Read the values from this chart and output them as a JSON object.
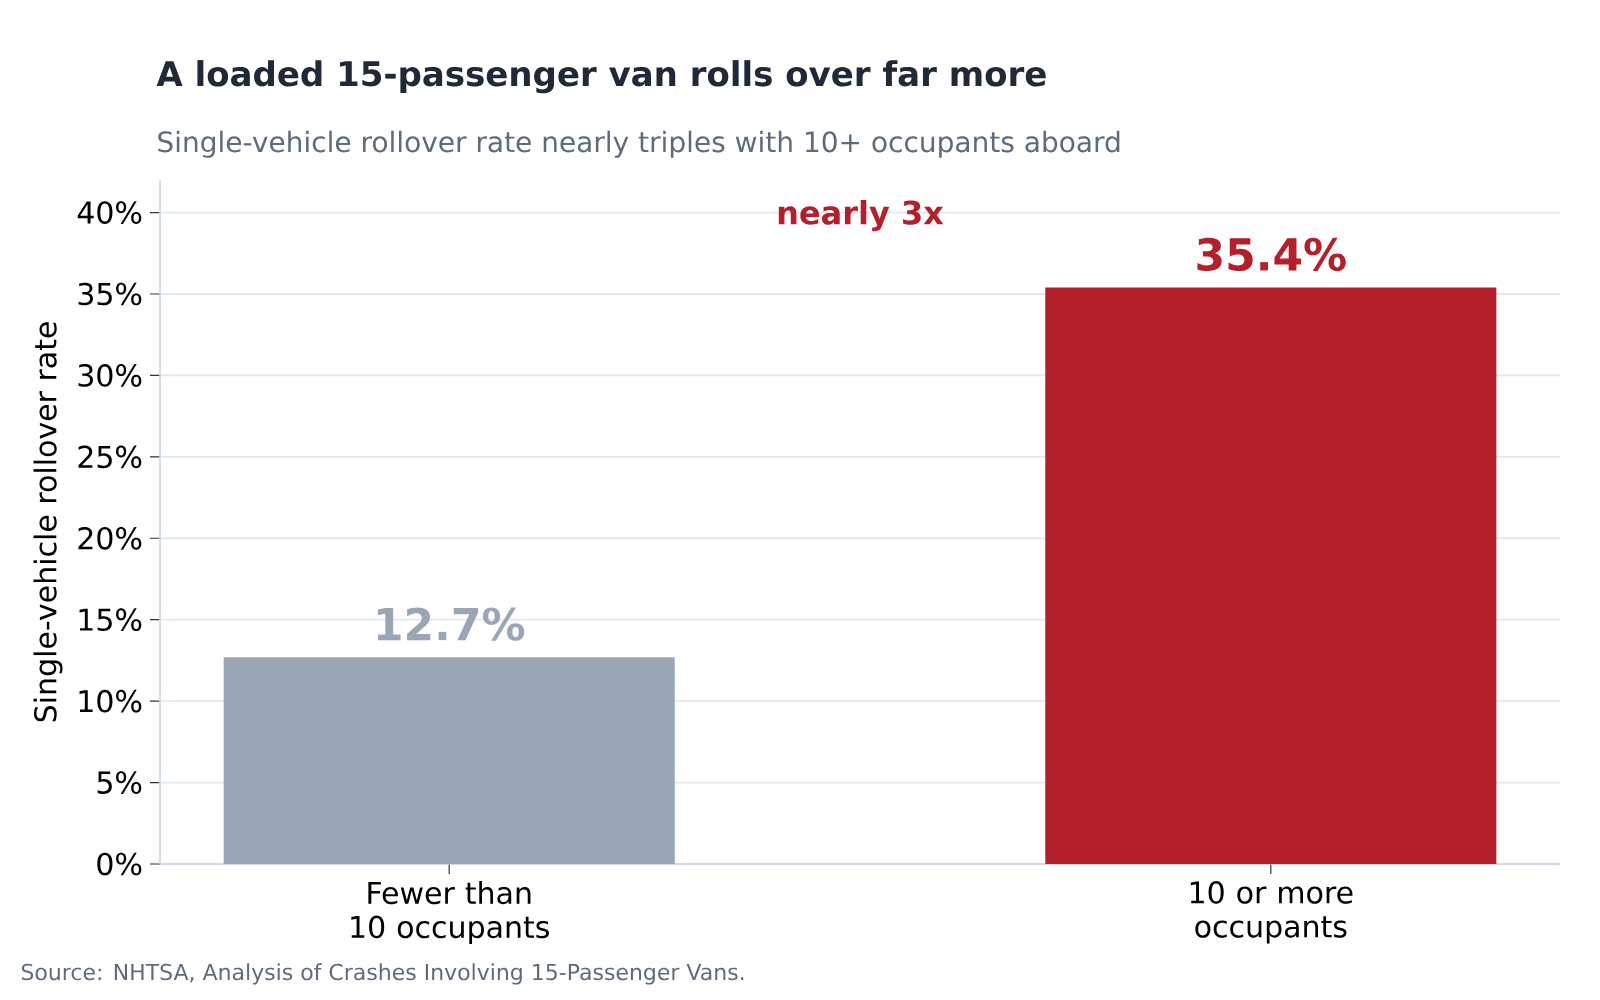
{
  "chart_data": {
    "type": "bar",
    "title": "A loaded 15-passenger van rolls over far more",
    "subtitle": "Single-vehicle rollover rate nearly triples with 10+ occupants aboard",
    "ylabel": "Single-vehicle rollover rate",
    "categories": [
      "Fewer than 10 occupants",
      "10 or more occupants"
    ],
    "values": [
      12.7,
      35.4
    ],
    "colors": [
      "#9aa6b4",
      "#b31f2b"
    ],
    "value_labels": [
      "12.7%",
      "35.4%"
    ],
    "ylim": [
      0,
      42
    ],
    "yticks": [
      {
        "value": 0,
        "label": "0%"
      },
      {
        "value": 5,
        "label": "5%"
      },
      {
        "value": 10,
        "label": "10%"
      },
      {
        "value": 15,
        "label": "15%"
      },
      {
        "value": 20,
        "label": "20%"
      },
      {
        "value": 25,
        "label": "25%"
      },
      {
        "value": 30,
        "label": "30%"
      },
      {
        "value": 35,
        "label": "35%"
      },
      {
        "value": 40,
        "label": "40%"
      }
    ],
    "grid": "y",
    "annotations": [
      "nearly 3x",
      "Source: NHTSA, Analysis of Crashes Involving 15-Passenger Vans."
    ]
  }
}
